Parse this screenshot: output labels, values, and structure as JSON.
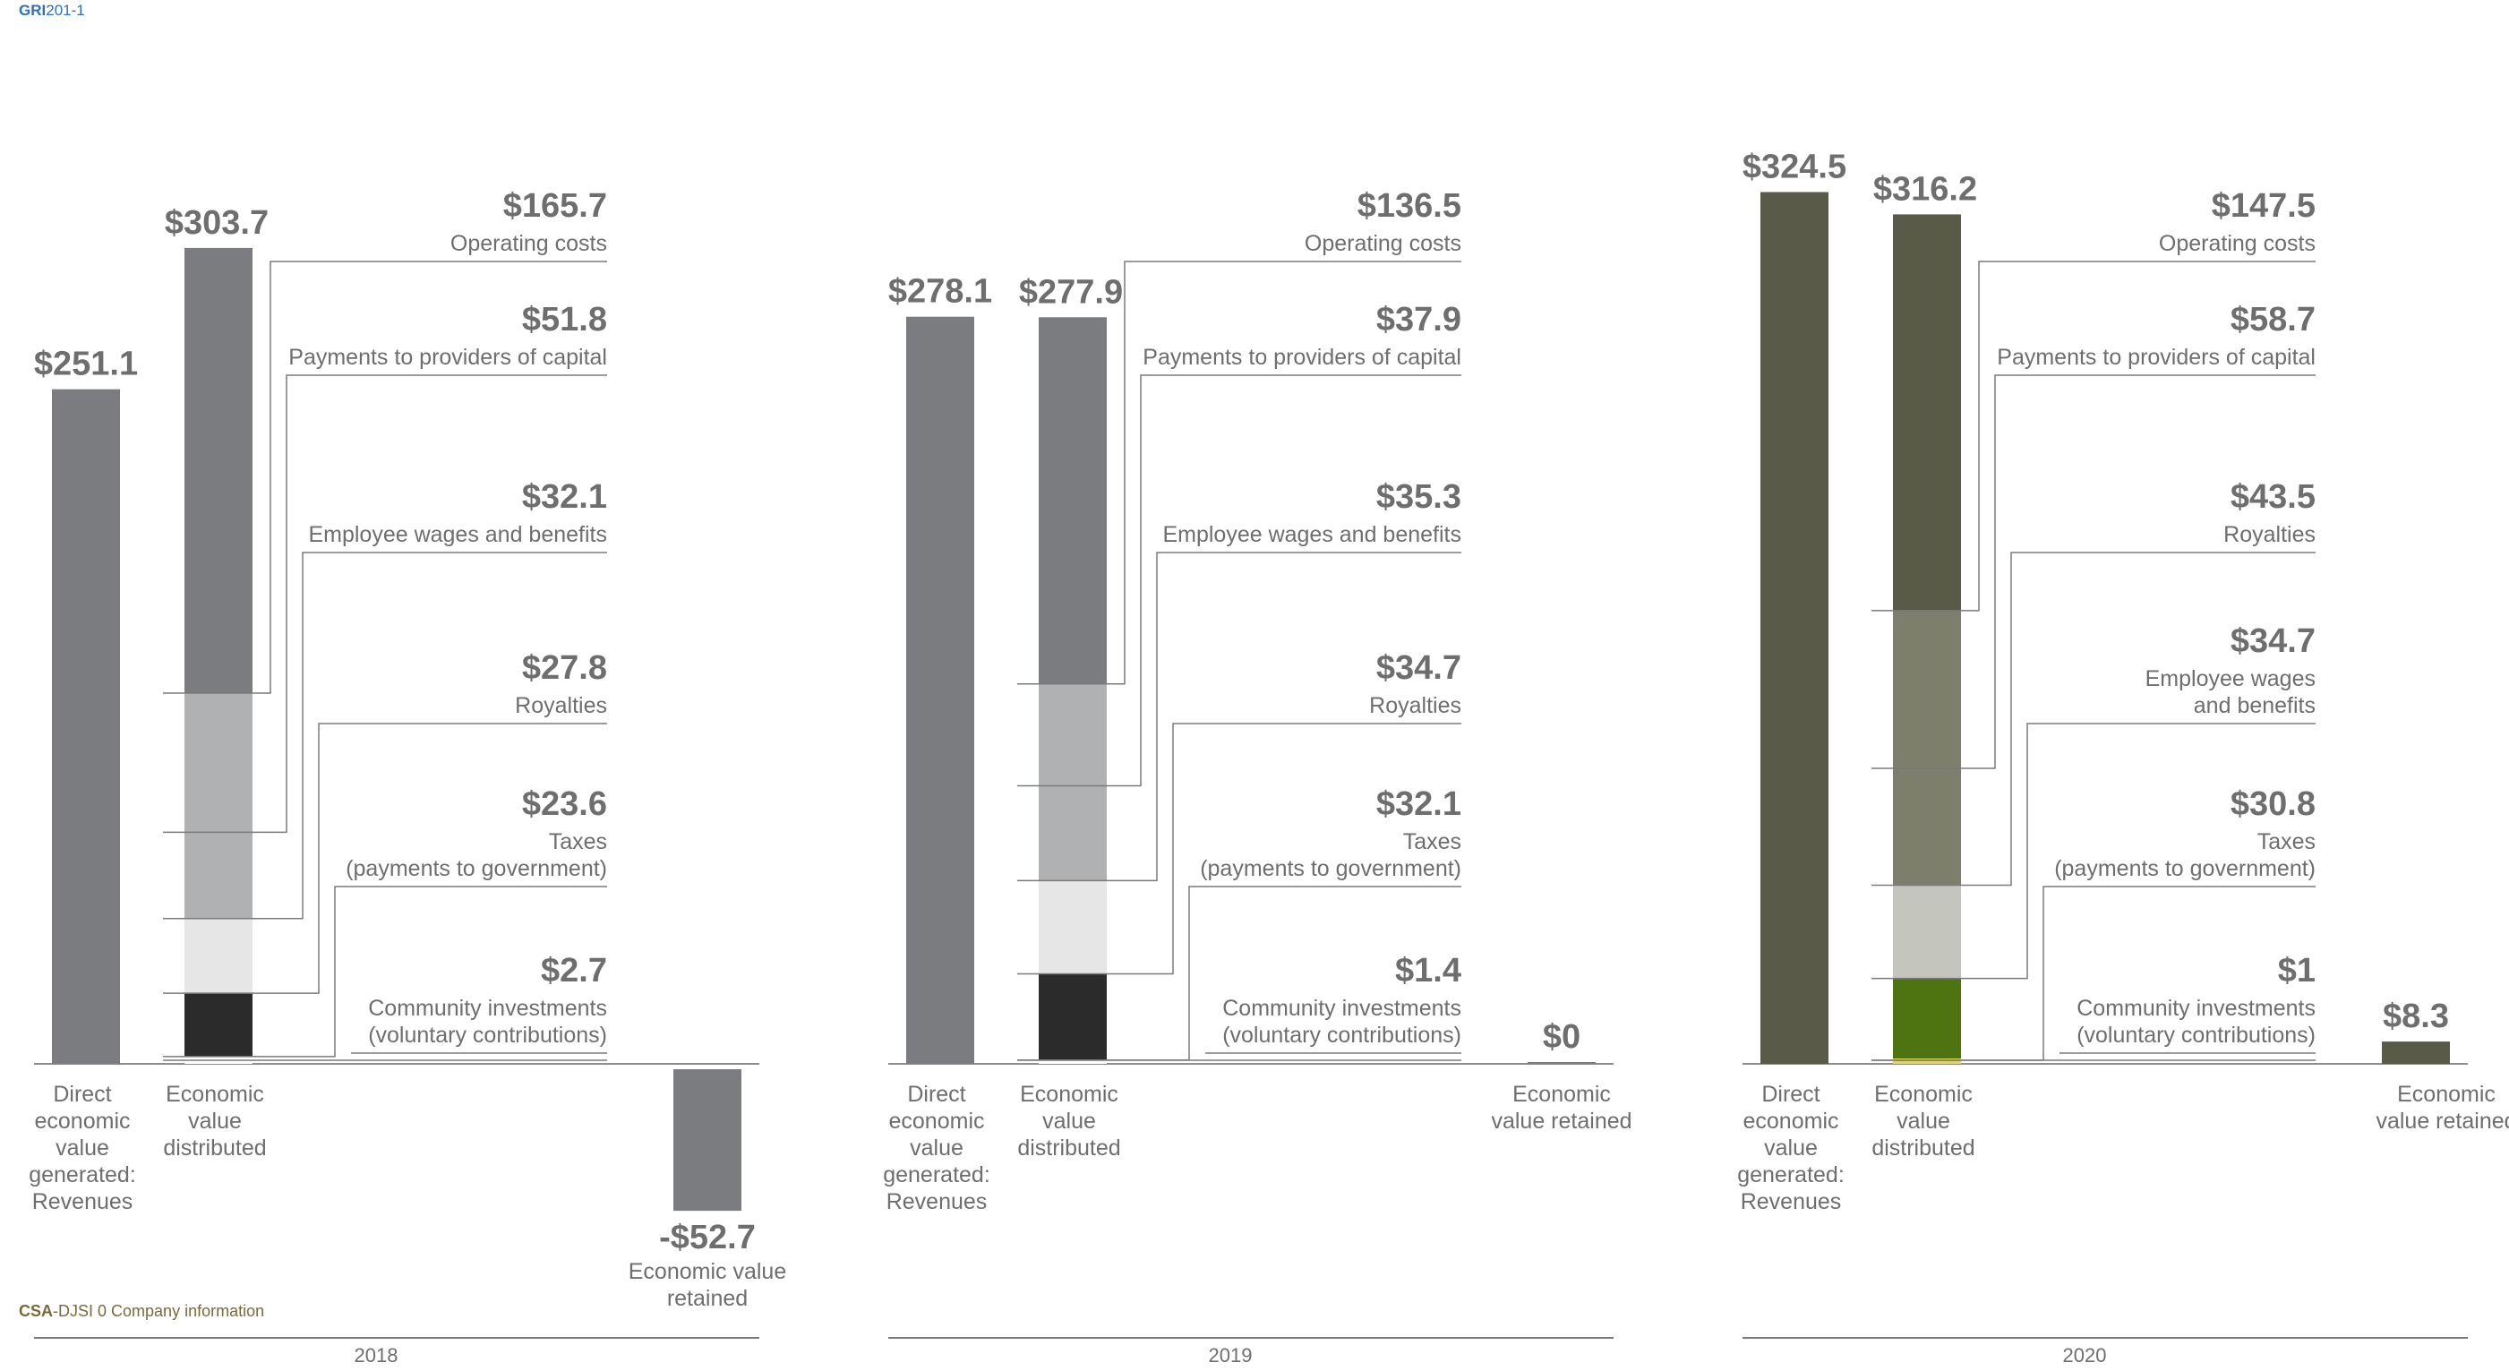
{
  "header": {
    "gri_tag": "GRI",
    "gri_code": "201-1"
  },
  "footer": {
    "csa_tag": "CSA",
    "csa_rest": "-DJSI 0 Company information"
  },
  "colors": {
    "gray_bar": "#7a7c80",
    "olive_bar": "#595b48",
    "gri_blue": "#2f6fb5",
    "csa_olive": "#7a6a3a",
    "text": "#6e6e6e"
  },
  "chart_data": [
    {
      "type": "bar",
      "year": "2018",
      "unit": "$",
      "revenues": {
        "value": 251.1,
        "label": "$251.1",
        "category": [
          "Direct",
          "economic",
          "value",
          "generated:",
          "Revenues"
        ]
      },
      "distributed": {
        "value": 303.7,
        "label": "$303.7",
        "category": [
          "Economic",
          "value",
          "distributed"
        ]
      },
      "retained": {
        "value": -52.7,
        "label": "-$52.7",
        "category": [
          "Economic value",
          "retained"
        ]
      },
      "components": [
        {
          "value": 165.7,
          "label": "$165.7",
          "name": [
            "Operating costs"
          ],
          "color": "#7a7c80"
        },
        {
          "value": 51.8,
          "label": "$51.8",
          "name": [
            "Payments to providers of capital"
          ],
          "color": "#b0b1b3"
        },
        {
          "value": 32.1,
          "label": "$32.1",
          "name": [
            "Employee wages and benefits"
          ],
          "color": "#b0b1b3"
        },
        {
          "value": 27.8,
          "label": "$27.8",
          "name": [
            "Royalties"
          ],
          "color": "#e6e6e6"
        },
        {
          "value": 23.6,
          "label": "$23.6",
          "name": [
            "Taxes",
            "(payments to government)"
          ],
          "color": "#2b2b2b"
        },
        {
          "value": 2.7,
          "label": "$2.7",
          "name": [
            "Community investments",
            "(voluntary contributions)"
          ],
          "color": "#ffffff"
        }
      ]
    },
    {
      "type": "bar",
      "year": "2019",
      "unit": "$",
      "revenues": {
        "value": 278.1,
        "label": "$278.1",
        "category": [
          "Direct",
          "economic",
          "value",
          "generated:",
          "Revenues"
        ]
      },
      "distributed": {
        "value": 277.9,
        "label": "$277.9",
        "category": [
          "Economic",
          "value",
          "distributed"
        ]
      },
      "retained": {
        "value": 0,
        "label": "$0",
        "category": [
          "Economic",
          "value retained"
        ]
      },
      "components": [
        {
          "value": 136.5,
          "label": "$136.5",
          "name": [
            "Operating costs"
          ],
          "color": "#7a7c80"
        },
        {
          "value": 37.9,
          "label": "$37.9",
          "name": [
            "Payments to providers of capital"
          ],
          "color": "#b0b1b3"
        },
        {
          "value": 35.3,
          "label": "$35.3",
          "name": [
            "Employee wages and benefits"
          ],
          "color": "#b0b1b3"
        },
        {
          "value": 34.7,
          "label": "$34.7",
          "name": [
            "Royalties"
          ],
          "color": "#e6e6e6"
        },
        {
          "value": 32.1,
          "label": "$32.1",
          "name": [
            "Taxes",
            "(payments to government)"
          ],
          "color": "#2b2b2b"
        },
        {
          "value": 1.4,
          "label": "$1.4",
          "name": [
            "Community investments",
            "(voluntary contributions)"
          ],
          "color": "#ffffff"
        }
      ]
    },
    {
      "type": "bar",
      "year": "2020",
      "unit": "$",
      "revenues": {
        "value": 324.5,
        "label": "$324.5",
        "category": [
          "Direct",
          "economic",
          "value",
          "generated:",
          "Revenues"
        ]
      },
      "distributed": {
        "value": 316.2,
        "label": "$316.2",
        "category": [
          "Economic",
          "value",
          "distributed"
        ]
      },
      "retained": {
        "value": 8.3,
        "label": "$8.3",
        "category": [
          "Economic",
          "value retained"
        ]
      },
      "components": [
        {
          "value": 147.5,
          "label": "$147.5",
          "name": [
            "Operating costs"
          ],
          "color": "#595b48"
        },
        {
          "value": 58.7,
          "label": "$58.7",
          "name": [
            "Payments to providers of capital"
          ],
          "color": "#7d7e6c"
        },
        {
          "value": 43.5,
          "label": "$43.5",
          "name": [
            "Royalties"
          ],
          "color": "#7d7e6c"
        },
        {
          "value": 34.7,
          "label": "$34.7",
          "name": [
            "Employee wages",
            "and benefits"
          ],
          "color": "#c4c5bd"
        },
        {
          "value": 30.8,
          "label": "$30.8",
          "name": [
            "Taxes",
            "(payments to government)"
          ],
          "color": "#4e7411"
        },
        {
          "value": 1,
          "label": "$1",
          "name": [
            "Community investments",
            "(voluntary contributions)"
          ],
          "color": "#b5c795"
        }
      ]
    }
  ]
}
